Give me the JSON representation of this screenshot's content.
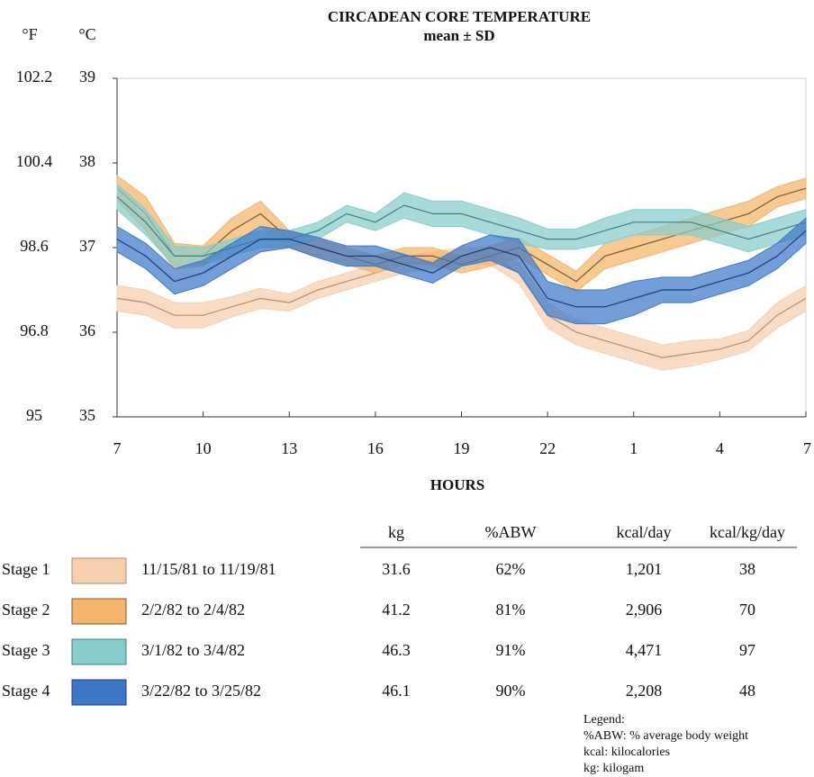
{
  "chart_data": {
    "type": "band",
    "title": "CIRCADEAN CORE TEMPERATURE",
    "subtitle": "mean ± SD",
    "xlabel": "HOURS",
    "ylabel": "°C",
    "y2label": "°F",
    "x": [
      7,
      8,
      9,
      10,
      11,
      12,
      13,
      14,
      15,
      16,
      17,
      18,
      19,
      20,
      21,
      22,
      23,
      24,
      25,
      26,
      27,
      28,
      29,
      30,
      31
    ],
    "xlim": [
      7,
      31
    ],
    "xticks": [
      7,
      10,
      13,
      16,
      19,
      22,
      {
        "value": 25,
        "label": "1"
      },
      {
        "value": 28,
        "label": "4"
      },
      {
        "value": 31,
        "label": "7"
      }
    ],
    "ylim": [
      35,
      39
    ],
    "yticks": [
      35,
      36,
      37,
      38,
      39
    ],
    "y2lim": [
      95,
      102.2
    ],
    "y2ticks": [
      95,
      96.8,
      98.6,
      100.4,
      102.2
    ],
    "series": [
      {
        "name": "Stage 1",
        "label": "11/15/81 to 11/19/81",
        "color": "#f5cfae",
        "line_color": "#c08a66",
        "values": [
          36.4,
          36.35,
          36.2,
          36.2,
          36.3,
          36.4,
          36.35,
          36.5,
          36.6,
          36.7,
          36.8,
          36.85,
          36.9,
          36.9,
          36.7,
          36.2,
          36.0,
          35.9,
          35.8,
          35.7,
          35.75,
          35.8,
          35.9,
          36.2,
          36.4
        ],
        "sd": [
          0.15,
          0.15,
          0.15,
          0.15,
          0.12,
          0.12,
          0.1,
          0.1,
          0.1,
          0.1,
          0.1,
          0.1,
          0.1,
          0.1,
          0.12,
          0.15,
          0.15,
          0.15,
          0.15,
          0.15,
          0.15,
          0.12,
          0.12,
          0.15,
          0.15
        ]
      },
      {
        "name": "Stage 2",
        "label": "2/2/82 to 2/4/82",
        "color": "#f4b46a",
        "line_color": "#7a5a30",
        "values": [
          37.7,
          37.4,
          36.9,
          36.9,
          37.2,
          37.4,
          37.1,
          37.0,
          36.9,
          36.8,
          36.9,
          36.9,
          36.8,
          36.9,
          37.0,
          36.8,
          36.6,
          36.9,
          37.0,
          37.1,
          37.2,
          37.3,
          37.4,
          37.6,
          37.7
        ],
        "sd": [
          0.15,
          0.2,
          0.15,
          0.12,
          0.15,
          0.15,
          0.1,
          0.1,
          0.1,
          0.1,
          0.1,
          0.1,
          0.1,
          0.12,
          0.12,
          0.12,
          0.12,
          0.15,
          0.15,
          0.15,
          0.15,
          0.15,
          0.15,
          0.12,
          0.12
        ]
      },
      {
        "name": "Stage 3",
        "label": "3/1/82 to 3/4/82",
        "color": "#88cccc",
        "line_color": "#3f7f7f",
        "values": [
          37.6,
          37.3,
          36.9,
          36.9,
          37.0,
          37.1,
          37.1,
          37.2,
          37.4,
          37.3,
          37.5,
          37.4,
          37.4,
          37.3,
          37.2,
          37.1,
          37.1,
          37.2,
          37.3,
          37.3,
          37.3,
          37.2,
          37.1,
          37.2,
          37.3
        ],
        "sd": [
          0.15,
          0.15,
          0.12,
          0.1,
          0.1,
          0.1,
          0.1,
          0.1,
          0.1,
          0.1,
          0.15,
          0.15,
          0.15,
          0.15,
          0.15,
          0.12,
          0.12,
          0.15,
          0.15,
          0.15,
          0.15,
          0.15,
          0.15,
          0.15,
          0.15
        ]
      },
      {
        "name": "Stage 4",
        "label": "3/22/82 to 3/25/82",
        "color": "#3d78c8",
        "line_color": "#1b3c78",
        "values": [
          37.1,
          36.9,
          36.6,
          36.7,
          36.9,
          37.1,
          37.1,
          37.0,
          36.9,
          36.9,
          36.8,
          36.7,
          36.9,
          37.0,
          36.9,
          36.4,
          36.3,
          36.3,
          36.4,
          36.5,
          36.5,
          36.6,
          36.7,
          36.9,
          37.2
        ],
        "sd": [
          0.15,
          0.15,
          0.15,
          0.15,
          0.15,
          0.15,
          0.1,
          0.12,
          0.12,
          0.12,
          0.12,
          0.12,
          0.12,
          0.15,
          0.2,
          0.2,
          0.2,
          0.2,
          0.2,
          0.15,
          0.15,
          0.15,
          0.15,
          0.15,
          0.15
        ]
      }
    ]
  },
  "table": {
    "columns": [
      "kg",
      "%ABW",
      "kcal/day",
      "kcal/kg/day"
    ],
    "rows": [
      [
        "31.6",
        "62%",
        "1,201",
        "38"
      ],
      [
        "41.2",
        "81%",
        "2,906",
        "70"
      ],
      [
        "46.3",
        "91%",
        "4,471",
        "97"
      ],
      [
        "46.1",
        "90%",
        "2,208",
        "48"
      ]
    ]
  },
  "notes": [
    "Legend:",
    "%ABW: % average body weight",
    "kcal: kilocalories",
    "kg: kilogam"
  ]
}
